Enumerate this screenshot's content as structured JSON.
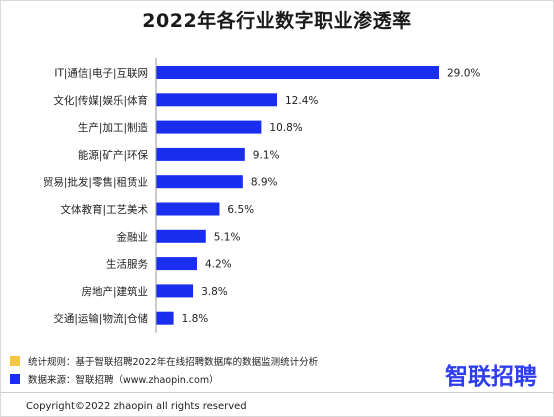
{
  "chart_data": {
    "type": "bar",
    "title": "2022年各行业数字职业渗透率",
    "orientation": "horizontal",
    "categories": [
      "IT|通信|电子|互联网",
      "文化|传媒|娱乐|体育",
      "生产|加工|制造",
      "能源|矿产|环保",
      "贸易|批发|零售|租赁业",
      "文体教育|工艺美术",
      "金融业",
      "生活服务",
      "房地产|建筑业",
      "交通|运输|物流|仓储"
    ],
    "values": [
      29.0,
      12.4,
      10.8,
      9.1,
      8.9,
      6.5,
      5.1,
      4.2,
      3.8,
      1.8
    ],
    "value_labels": [
      "29.0%",
      "12.4%",
      "10.8%",
      "9.1%",
      "8.9%",
      "6.5%",
      "5.1%",
      "4.2%",
      "3.8%",
      "1.8%"
    ],
    "unit": "%",
    "bar_color": "#1a2ef0",
    "grid": false,
    "legend": false
  },
  "footnotes": [
    {
      "text": "统计规则：基于智联招聘2022年在线招聘数据库的数据监测统计分析",
      "color": "#f5c842"
    },
    {
      "text": "数据来源：智联招聘（www.zhaopin.com）",
      "color": "#1a2ef0"
    }
  ],
  "logo_text": "智联招聘",
  "copyright": "Copyright©2022 zhaopin all rights reserved"
}
